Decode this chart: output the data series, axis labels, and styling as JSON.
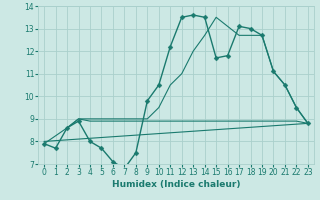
{
  "xlabel": "Humidex (Indice chaleur)",
  "background_color": "#cce8e4",
  "grid_color": "#aad0cc",
  "line_color": "#1a7a6e",
  "xlim": [
    -0.5,
    23.5
  ],
  "ylim": [
    7,
    14
  ],
  "yticks": [
    7,
    8,
    9,
    10,
    11,
    12,
    13,
    14
  ],
  "xticks": [
    0,
    1,
    2,
    3,
    4,
    5,
    6,
    7,
    8,
    9,
    10,
    11,
    12,
    13,
    14,
    15,
    16,
    17,
    18,
    19,
    20,
    21,
    22,
    23
  ],
  "curves": [
    {
      "x": [
        0,
        1,
        2,
        3,
        4,
        5,
        6,
        7,
        8,
        9,
        10,
        11,
        12,
        13,
        14,
        15,
        16,
        17,
        18,
        19,
        20,
        21,
        22,
        23
      ],
      "y": [
        7.9,
        7.7,
        8.6,
        8.9,
        8.0,
        7.7,
        7.1,
        6.8,
        7.5,
        9.8,
        10.5,
        12.2,
        13.5,
        13.6,
        13.5,
        11.7,
        11.8,
        13.1,
        13.0,
        12.7,
        11.1,
        10.5,
        9.5,
        8.8
      ],
      "marker": "D",
      "linewidth": 1.0,
      "markersize": 2.5
    },
    {
      "x": [
        0,
        23
      ],
      "y": [
        8.0,
        8.8
      ],
      "marker": null,
      "linewidth": 0.8,
      "markersize": 0
    },
    {
      "x": [
        2,
        3,
        9,
        10,
        11,
        12,
        13,
        14,
        15,
        17,
        19,
        20,
        21,
        22,
        23
      ],
      "y": [
        8.6,
        9.0,
        9.0,
        9.5,
        10.5,
        11.0,
        12.0,
        12.7,
        13.5,
        12.7,
        12.7,
        11.1,
        10.5,
        9.5,
        8.8
      ],
      "marker": null,
      "linewidth": 0.8,
      "markersize": 0
    },
    {
      "x": [
        0,
        2,
        3,
        4,
        5,
        6,
        7,
        8,
        9,
        10,
        11,
        12,
        13,
        14,
        15,
        16,
        17,
        18,
        19,
        20,
        21,
        22,
        23
      ],
      "y": [
        7.9,
        8.6,
        9.0,
        8.9,
        8.9,
        8.9,
        8.9,
        8.9,
        8.9,
        8.9,
        8.9,
        8.9,
        8.9,
        8.9,
        8.9,
        8.9,
        8.9,
        8.9,
        8.9,
        8.9,
        8.9,
        8.9,
        8.8
      ],
      "marker": null,
      "linewidth": 0.8,
      "markersize": 0
    }
  ]
}
